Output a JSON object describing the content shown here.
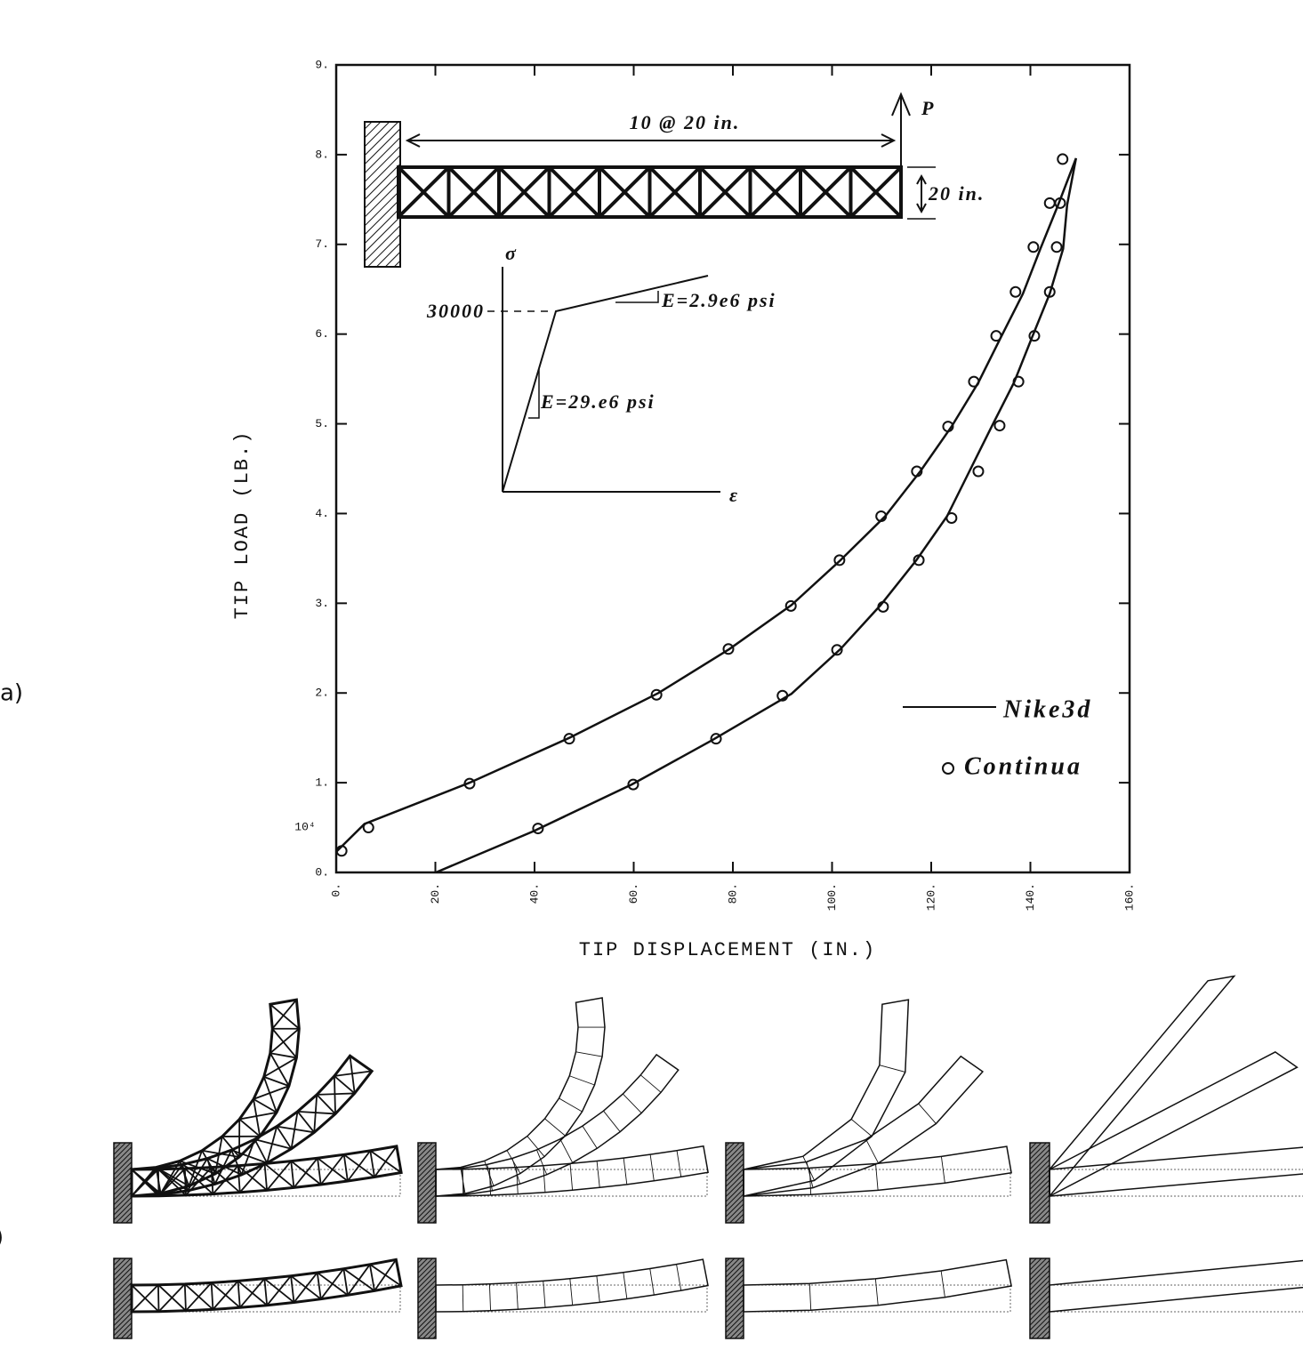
{
  "chart_data": {
    "type": "line",
    "x_label": "TIP DISPLACEMENT (IN.)",
    "y_label": "TIP LOAD (LB.)",
    "y_multiplier": "10⁴",
    "xlim": [
      0,
      160
    ],
    "ylim": [
      0,
      9
    ],
    "xticks": [
      {
        "value": 0,
        "label": "0."
      },
      {
        "value": 20,
        "label": "20."
      },
      {
        "value": 40,
        "label": "40."
      },
      {
        "value": 60,
        "label": "60."
      },
      {
        "value": 80,
        "label": "80."
      },
      {
        "value": 100,
        "label": "100."
      },
      {
        "value": 120,
        "label": "120."
      },
      {
        "value": 140,
        "label": "140."
      },
      {
        "value": 160,
        "label": "160."
      }
    ],
    "yticks": [
      {
        "value": 0,
        "label": "0."
      },
      {
        "value": 1,
        "label": "1."
      },
      {
        "value": 2,
        "label": "2."
      },
      {
        "value": 3,
        "label": "3."
      },
      {
        "value": 4,
        "label": "4."
      },
      {
        "value": 5,
        "label": "5."
      },
      {
        "value": 6,
        "label": "6."
      },
      {
        "value": 7,
        "label": "7."
      },
      {
        "value": 8,
        "label": "8."
      },
      {
        "value": 9,
        "label": "9."
      }
    ],
    "series": [
      {
        "name": "Nike3d",
        "mode": "line",
        "color": "#111111",
        "x": [
          0,
          5.7,
          26.9,
          47,
          65,
          79.3,
          91.8,
          101.7,
          110.7,
          117.8,
          124.1,
          129.5,
          134,
          138.5,
          142,
          145.6,
          149.2
        ],
        "values": [
          0.23,
          0.54,
          1.0,
          1.5,
          2.0,
          2.49,
          2.98,
          3.48,
          3.97,
          4.47,
          4.97,
          5.46,
          5.96,
          6.45,
          6.95,
          7.44,
          7.96
        ]
      },
      {
        "name": "Nike3d",
        "mode": "line",
        "color": "#111111",
        "x": [
          20.1,
          39.8,
          59.6,
          75.7,
          91.8,
          101.7,
          109.8,
          117,
          123.2,
          127.7,
          132.2,
          136.7,
          140.3,
          143.9,
          146.6,
          147.4,
          149.2
        ],
        "values": [
          0,
          0.46,
          0.98,
          1.47,
          1.99,
          2.49,
          2.98,
          3.48,
          3.97,
          4.47,
          4.97,
          5.46,
          5.96,
          6.45,
          6.95,
          7.44,
          7.96
        ]
      },
      {
        "name": "Continua",
        "mode": "markers",
        "color": "#111111",
        "x": [
          1.1,
          6.5,
          26.9,
          47,
          64.6,
          79.1,
          91.7,
          101.5,
          109.9,
          117.1,
          123.4,
          128.6,
          133.1,
          137,
          140.6,
          143.9,
          146.5
        ],
        "values": [
          0.24,
          0.5,
          0.99,
          1.49,
          1.98,
          2.49,
          2.97,
          3.48,
          3.97,
          4.47,
          4.97,
          5.47,
          5.98,
          6.47,
          6.97,
          7.46,
          7.95
        ]
      },
      {
        "name": "Continua",
        "mode": "markers",
        "color": "#111111",
        "x": [
          40.7,
          59.9,
          76.6,
          90,
          101,
          110.3,
          117.5,
          124.1,
          129.5,
          133.8,
          137.6,
          140.8,
          143.9,
          145.3,
          146
        ],
        "values": [
          0.49,
          0.98,
          1.49,
          1.97,
          2.48,
          2.96,
          3.48,
          3.95,
          4.47,
          4.98,
          5.47,
          5.98,
          6.47,
          6.97,
          7.46
        ]
      }
    ],
    "annotations": [
      "10 @ 20 in.",
      "P",
      "20 in.",
      "σ",
      "ε",
      "30000",
      "E=2.9e6 psi",
      "E=29.e6 psi"
    ]
  },
  "panel_labels": [
    "a)",
    ")"
  ]
}
